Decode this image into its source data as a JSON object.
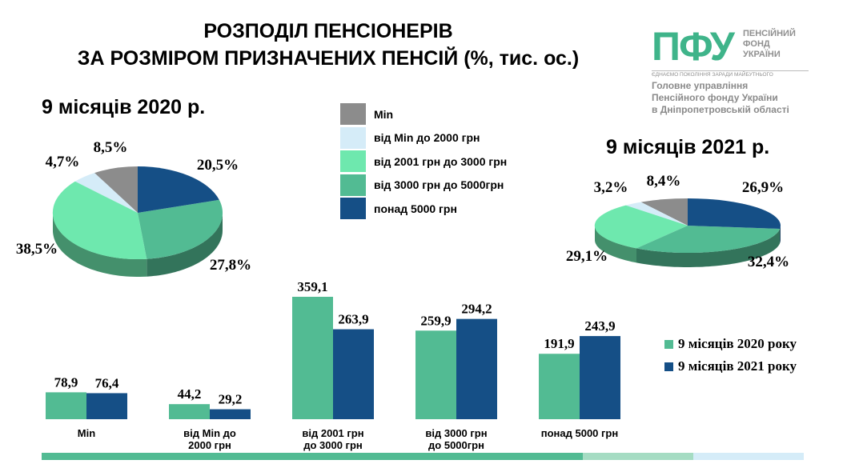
{
  "title_line1": "РОЗПОДІЛ ПЕНСІОНЕРІВ",
  "title_line2": "ЗА РОЗМІРОМ ПРИЗНАЧЕНИХ ПЕНСІЙ (%, тис. ос.)",
  "logo": {
    "mark": "ПФУ",
    "name_line1": "ПЕНСІЙНИЙ",
    "name_line2": "ФОНД",
    "name_line3": "УКРАЇНИ",
    "motto": "ЄДНАЄМО ПОКОЛІННЯ ЗАРАДИ МАЙБУТНЬОГО",
    "dept_line1": "Головне управління",
    "dept_line2": "Пенсійного фонду України",
    "dept_line3": "в Дніпропетровській області"
  },
  "colors": {
    "min": "#8c8c8c",
    "to2000": "#d5ecf8",
    "to3000": "#6ee8ae",
    "to5000": "#52bb93",
    "over5000": "#154f86",
    "bar2020": "#52bb93",
    "bar2021": "#154f86"
  },
  "legend_categories": [
    "Min",
    "від Min до 2000 грн",
    "від 2001 грн до 3000 грн",
    "від 3000 грн до 5000грн",
    "понад 5000 грн"
  ],
  "chart_data": [
    {
      "type": "pie",
      "title": "9 місяців 2020 р.",
      "labels": [
        "Min",
        "від Min до 2000 грн",
        "від 2001 грн до 3000 грн",
        "від 3000 грн до 5000грн",
        "понад 5000 грн"
      ],
      "values": [
        8.5,
        4.7,
        38.5,
        27.8,
        20.5
      ],
      "value_labels": [
        "8,5%",
        "4,7%",
        "38,5%",
        "27,8%",
        "20,5%"
      ]
    },
    {
      "type": "pie",
      "title": "9 місяців 2021 р.",
      "labels": [
        "Min",
        "від Min до 2000 грн",
        "від 2001 грн до 3000 грн",
        "від 3000 грн до 5000грн",
        "понад 5000 грн"
      ],
      "values": [
        8.4,
        3.2,
        29.1,
        32.4,
        26.9
      ],
      "value_labels": [
        "8,4%",
        "3,2%",
        "29,1%",
        "32,4%",
        "26,9%"
      ]
    },
    {
      "type": "bar",
      "categories": [
        "Min",
        "від Min до 2000 грн",
        "від 2001 грн до 3000 грн",
        "від 3000 грн до 5000грн",
        "понад 5000 грн"
      ],
      "category_lines": [
        [
          "Min"
        ],
        [
          "від Min до",
          "2000 грн"
        ],
        [
          "від 2001 грн",
          "до 3000 грн"
        ],
        [
          "від 3000 грн",
          "до 5000грн"
        ],
        [
          "понад 5000 грн"
        ]
      ],
      "series": [
        {
          "name": "9 місяців 2020 року",
          "values": [
            78.9,
            44.2,
            359.1,
            259.9,
            191.9
          ],
          "labels": [
            "78,9",
            "44,2",
            "359,1",
            "259,9",
            "191,9"
          ]
        },
        {
          "name": "9 місяців 2021 року",
          "values": [
            76.4,
            29.2,
            263.9,
            294.2,
            243.9
          ],
          "labels": [
            "76,4",
            "29,2",
            "263,9",
            "294,2",
            "243,9"
          ]
        }
      ],
      "ylim": [
        0,
        400
      ],
      "legend": "right"
    }
  ]
}
